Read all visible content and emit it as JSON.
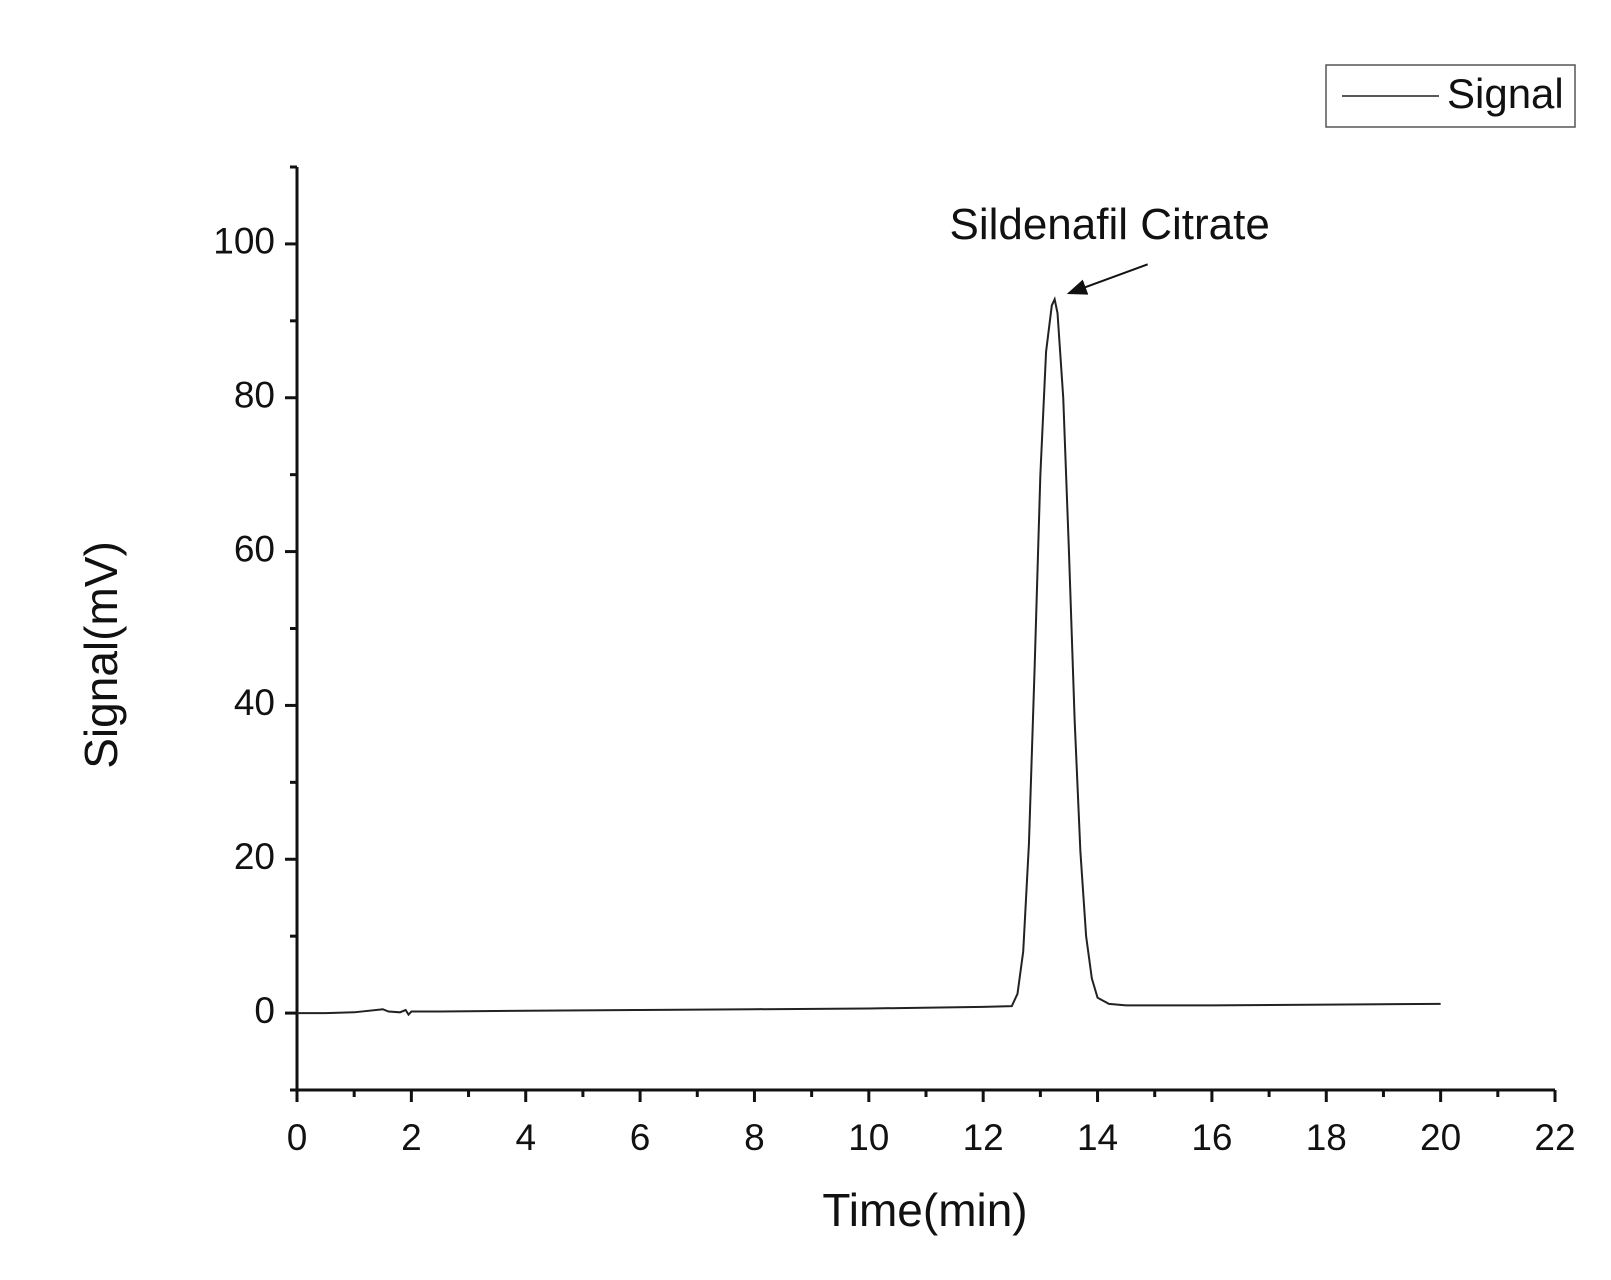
{
  "chart_data": {
    "type": "line",
    "annotation": "Sildenafil Citrate",
    "annotation_x": 13.25,
    "x_label": "Time(min)",
    "y_label": "Signal(mV)",
    "x": [
      0,
      0.5,
      1,
      1.5,
      1.6,
      1.8,
      1.9,
      1.95,
      2.0,
      2.5,
      4,
      6,
      8,
      10,
      12,
      12.5,
      12.6,
      12.7,
      12.8,
      12.9,
      13.0,
      13.1,
      13.2,
      13.25,
      13.3,
      13.4,
      13.5,
      13.6,
      13.7,
      13.8,
      13.9,
      14.0,
      14.2,
      14.5,
      16,
      18,
      20
    ],
    "series": [
      {
        "name": "Signal",
        "color": "#222222",
        "values": [
          0,
          0,
          0.1,
          0.5,
          0.2,
          0.1,
          0.4,
          -0.2,
          0.2,
          0.2,
          0.3,
          0.4,
          0.5,
          0.6,
          0.8,
          0.9,
          2.5,
          8,
          22,
          45,
          70,
          86,
          92,
          92.8,
          91,
          80,
          60,
          38,
          21,
          10,
          4.5,
          2,
          1.2,
          1,
          1,
          1.1,
          1.2
        ]
      }
    ],
    "xlim": [
      0,
      22
    ],
    "ylim": [
      -10,
      110
    ],
    "xticks": [
      0,
      2,
      4,
      6,
      8,
      10,
      12,
      14,
      16,
      18,
      20,
      22
    ],
    "yticks": [
      0,
      20,
      40,
      60,
      80,
      100
    ],
    "xminorticks": [
      1,
      3,
      5,
      7,
      9,
      11,
      13,
      15,
      17,
      19,
      21
    ],
    "yminorticks": [
      -10,
      10,
      30,
      50,
      70,
      90,
      110
    ],
    "legend": "upper right",
    "grid": false
  }
}
